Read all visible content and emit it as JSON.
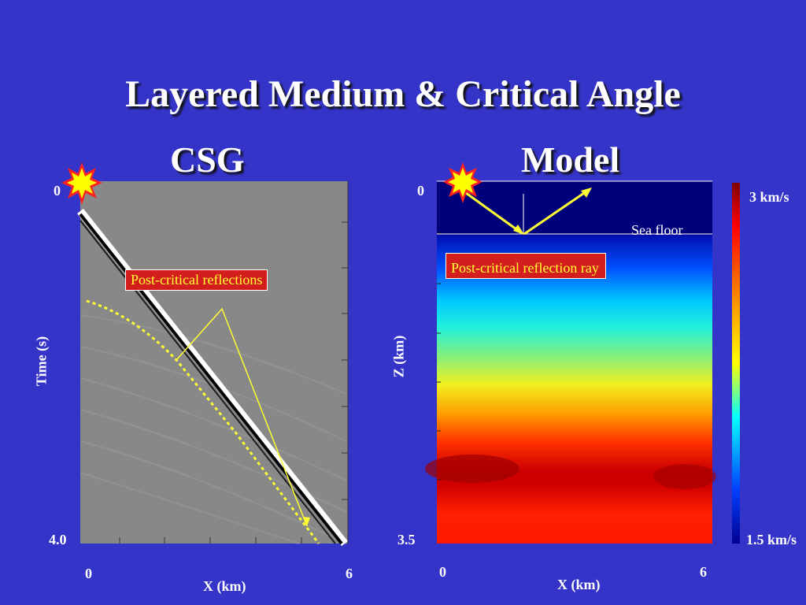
{
  "slide": {
    "title": "Layered Medium & Critical Angle"
  },
  "left_panel": {
    "heading": "CSG",
    "time_top": "0",
    "time_bottom": "4.0",
    "y_label": "Time (s)",
    "x_min": "0",
    "x_max": "6",
    "x_label": "X (km)",
    "annotation": "Post-critical reflections"
  },
  "right_panel": {
    "heading": "Model",
    "depth_top": "0",
    "depth_bottom": "3.5",
    "y_label": "Z (km)",
    "x_min": "0",
    "x_max": "6",
    "x_label": "X (km)",
    "annotation": "Post-critical reflection ray",
    "sea_floor_label": "Sea floor"
  },
  "colorbar": {
    "max_label": "3 km/s",
    "min_label": "1.5 km/s"
  },
  "colors": {
    "background": "#3434c8",
    "annotation_box": "#d41e1e",
    "annotation_text": "#ffff33",
    "ray": "#ffff33"
  }
}
